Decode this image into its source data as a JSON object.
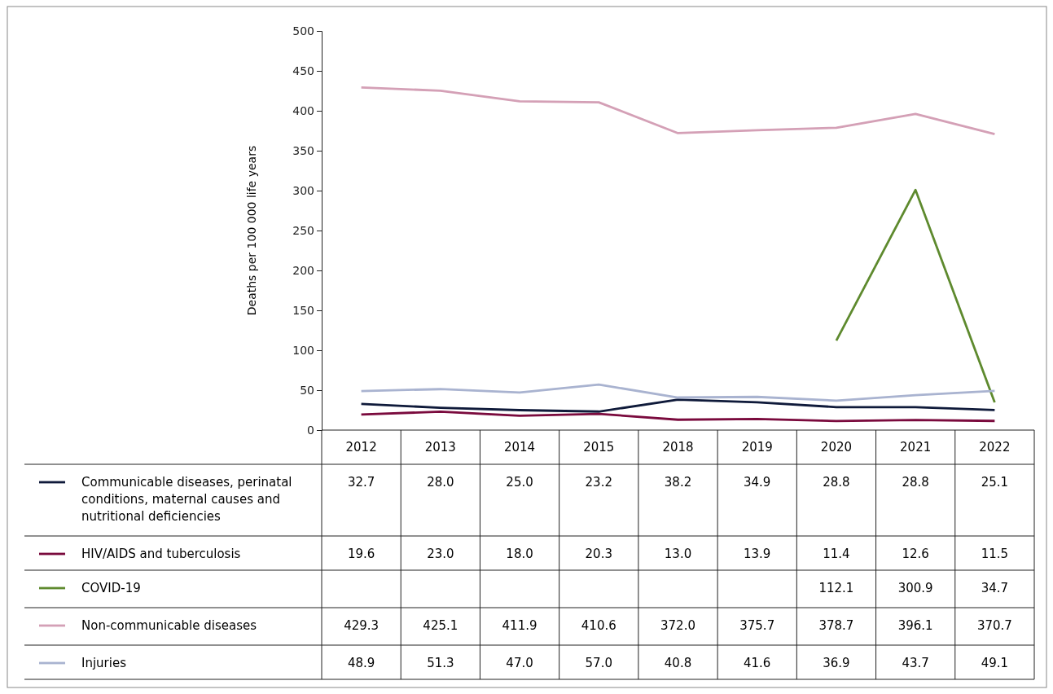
{
  "chart_data": {
    "type": "line",
    "ylabel": "Deaths per 100 000 life years",
    "categories": [
      "2012",
      "2013",
      "2014",
      "2015",
      "2018",
      "2019",
      "2020",
      "2021",
      "2022"
    ],
    "series": [
      {
        "name": "Communicable diseases, perinatal conditions, maternal causes and nutritional deficiencies",
        "color": "#0f1a3a",
        "values": [
          32.7,
          28.0,
          25.0,
          23.2,
          38.2,
          34.9,
          28.8,
          28.8,
          25.1
        ],
        "value_labels": [
          "32.7",
          "28.0",
          "25.0",
          "23.2",
          "38.2",
          "34.9",
          "28.8",
          "28.8",
          "25.1"
        ]
      },
      {
        "name": "HIV/AIDS and tuberculosis",
        "color": "#7a0a3d",
        "values": [
          19.6,
          23.0,
          18.0,
          20.3,
          13.0,
          13.9,
          11.4,
          12.6,
          11.5
        ],
        "value_labels": [
          "19.6",
          "23.0",
          "18.0",
          "20.3",
          "13.0",
          "13.9",
          "11.4",
          "12.6",
          "11.5"
        ]
      },
      {
        "name": "COVID-19",
        "color": "#5e8a2e",
        "values": [
          null,
          null,
          null,
          null,
          null,
          null,
          112.1,
          300.9,
          34.7
        ],
        "value_labels": [
          null,
          null,
          null,
          null,
          null,
          null,
          "112.1",
          "300.9",
          "34.7"
        ]
      },
      {
        "name": "Non-communicable diseases",
        "color": "#d4a0b6",
        "values": [
          429.3,
          425.1,
          411.9,
          410.6,
          372.0,
          375.7,
          378.7,
          396.1,
          370.7
        ],
        "value_labels": [
          "429.3",
          "425.1",
          "411.9",
          "410.6",
          "372.0",
          "375.7",
          "378.7",
          "396.1",
          "370.7"
        ]
      },
      {
        "name": "Injuries",
        "color": "#a9b3d0",
        "values": [
          48.9,
          51.3,
          47.0,
          57.0,
          40.8,
          41.6,
          36.9,
          43.7,
          49.1
        ],
        "value_labels": [
          "48.9",
          "51.3",
          "47.0",
          "57.0",
          "40.8",
          "41.6",
          "36.9",
          "43.7",
          "49.1"
        ]
      }
    ],
    "ylim": [
      0,
      500
    ],
    "yticks": [
      0,
      50,
      100,
      150,
      200,
      250,
      300,
      350,
      400,
      450,
      500
    ],
    "legend": "bottom",
    "grid": false,
    "marker": "none",
    "line_style": "solid"
  }
}
